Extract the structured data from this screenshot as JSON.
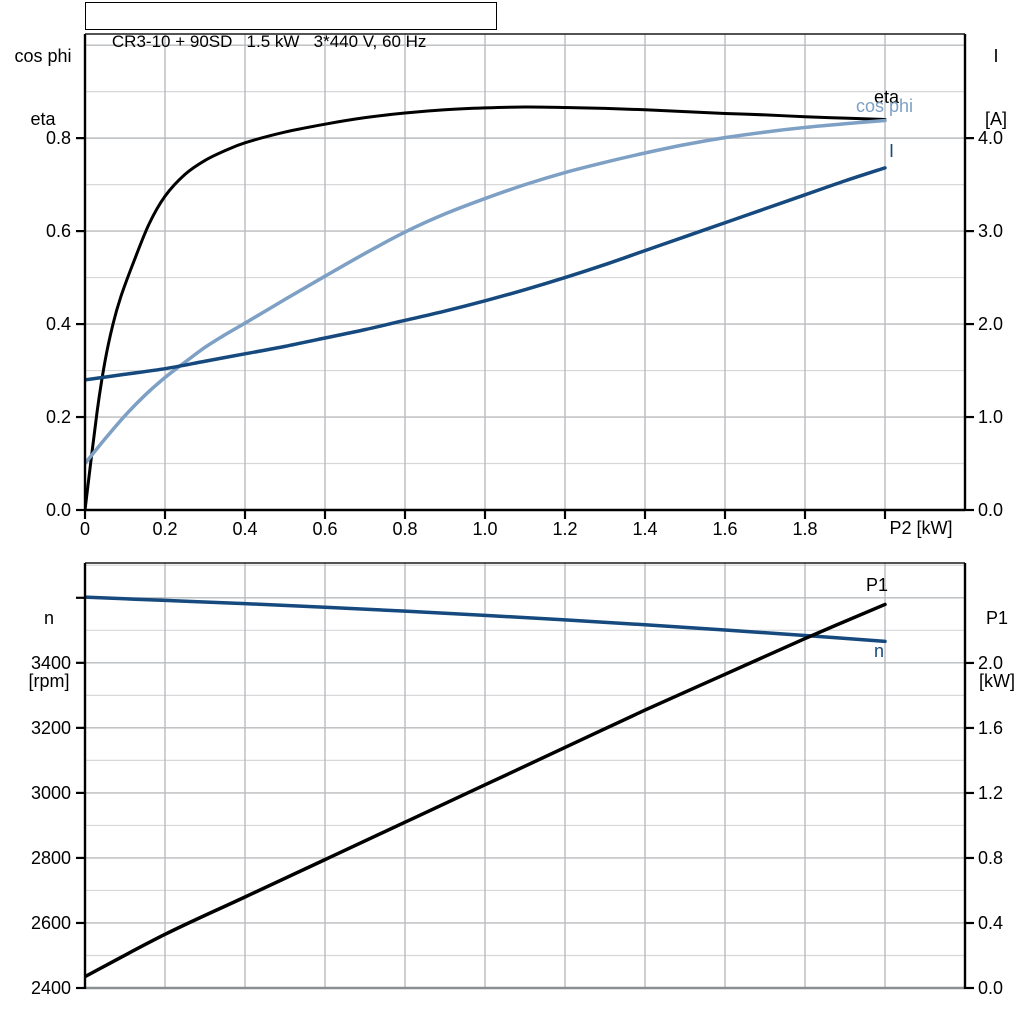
{
  "title": "CR3-10 + 90SD   1.5 kW   3*440 V, 60 Hz",
  "colors": {
    "black": "#000000",
    "light_blue": "#7da0c4",
    "dark_blue": "#16497e",
    "grid_major": "#b8bbbe",
    "grid_minor": "#d6d8da",
    "frame_gray": "#8a8f92",
    "background": "#ffffff"
  },
  "chart_data": [
    {
      "id": "motor-curves",
      "type": "line",
      "title": "CR3-10 + 90SD   1.5 kW   3*440 V, 60 Hz",
      "x_axis": {
        "label": "P2 [kW]",
        "min": 0,
        "max": 2.2,
        "major_step": 0.2,
        "ticks": [
          {
            "v": 0,
            "t": "0"
          },
          {
            "v": 0.2,
            "t": "0.2"
          },
          {
            "v": 0.4,
            "t": "0.4"
          },
          {
            "v": 0.6,
            "t": "0.6"
          },
          {
            "v": 0.8,
            "t": "0.8"
          },
          {
            "v": 1.0,
            "t": "1.0"
          },
          {
            "v": 1.2,
            "t": "1.2"
          },
          {
            "v": 1.4,
            "t": "1.4"
          },
          {
            "v": 1.6,
            "t": "1.6"
          },
          {
            "v": 1.8,
            "t": "1.8"
          },
          {
            "v": 2.0,
            "t": ""
          }
        ]
      },
      "y_left": {
        "label_lines": [
          "cos phi",
          "eta"
        ],
        "min": 0,
        "max": 1.024,
        "major_step": 0.2,
        "minor_step": 0.1,
        "ticks": [
          {
            "v": 0,
            "t": "0.0"
          },
          {
            "v": 0.2,
            "t": "0.2"
          },
          {
            "v": 0.4,
            "t": "0.4"
          },
          {
            "v": 0.6,
            "t": "0.6"
          },
          {
            "v": 0.8,
            "t": "0.8"
          }
        ]
      },
      "y_right": {
        "label_lines": [
          "I",
          "[A]"
        ],
        "min": 0,
        "max": 5.12,
        "major_step": 1,
        "ticks": [
          {
            "v": 0,
            "t": "0.0"
          },
          {
            "v": 1,
            "t": "1.0"
          },
          {
            "v": 2,
            "t": "2.0"
          },
          {
            "v": 3,
            "t": "3.0"
          },
          {
            "v": 4,
            "t": "4.0"
          }
        ]
      },
      "series": [
        {
          "name": "eta",
          "label": "eta",
          "axis": "left",
          "color": "black",
          "points": [
            [
              0,
              0
            ],
            [
              0.03,
              0.21
            ],
            [
              0.05,
              0.32
            ],
            [
              0.07,
              0.4
            ],
            [
              0.09,
              0.46
            ],
            [
              0.12,
              0.53
            ],
            [
              0.16,
              0.615
            ],
            [
              0.2,
              0.675
            ],
            [
              0.25,
              0.722
            ],
            [
              0.3,
              0.752
            ],
            [
              0.35,
              0.773
            ],
            [
              0.4,
              0.79
            ],
            [
              0.5,
              0.813
            ],
            [
              0.6,
              0.83
            ],
            [
              0.7,
              0.844
            ],
            [
              0.8,
              0.854
            ],
            [
              0.9,
              0.861
            ],
            [
              1.0,
              0.865
            ],
            [
              1.1,
              0.867
            ],
            [
              1.2,
              0.866
            ],
            [
              1.3,
              0.864
            ],
            [
              1.4,
              0.861
            ],
            [
              1.5,
              0.857
            ],
            [
              1.6,
              0.853
            ],
            [
              1.7,
              0.85
            ],
            [
              1.8,
              0.846
            ],
            [
              1.9,
              0.843
            ],
            [
              2.0,
              0.84
            ]
          ]
        },
        {
          "name": "cos phi",
          "label": "cos phi",
          "axis": "left",
          "color": "light_blue",
          "points": [
            [
              0,
              0.1
            ],
            [
              0.05,
              0.153
            ],
            [
              0.1,
              0.203
            ],
            [
              0.15,
              0.247
            ],
            [
              0.2,
              0.285
            ],
            [
              0.25,
              0.318
            ],
            [
              0.3,
              0.35
            ],
            [
              0.35,
              0.377
            ],
            [
              0.4,
              0.402
            ],
            [
              0.5,
              0.453
            ],
            [
              0.6,
              0.503
            ],
            [
              0.7,
              0.552
            ],
            [
              0.8,
              0.598
            ],
            [
              0.9,
              0.637
            ],
            [
              1.0,
              0.67
            ],
            [
              1.1,
              0.7
            ],
            [
              1.2,
              0.726
            ],
            [
              1.3,
              0.748
            ],
            [
              1.4,
              0.768
            ],
            [
              1.5,
              0.786
            ],
            [
              1.6,
              0.801
            ],
            [
              1.7,
              0.813
            ],
            [
              1.8,
              0.823
            ],
            [
              1.9,
              0.831
            ],
            [
              2.0,
              0.838
            ]
          ]
        },
        {
          "name": "I",
          "label": "I",
          "axis": "right",
          "color": "dark_blue",
          "points": [
            [
              0,
              1.4
            ],
            [
              0.1,
              1.46
            ],
            [
              0.2,
              1.52
            ],
            [
              0.3,
              1.6
            ],
            [
              0.4,
              1.68
            ],
            [
              0.5,
              1.76
            ],
            [
              0.6,
              1.85
            ],
            [
              0.7,
              1.94
            ],
            [
              0.8,
              2.04
            ],
            [
              0.9,
              2.14
            ],
            [
              1.0,
              2.25
            ],
            [
              1.1,
              2.37
            ],
            [
              1.2,
              2.5
            ],
            [
              1.3,
              2.64
            ],
            [
              1.4,
              2.79
            ],
            [
              1.5,
              2.94
            ],
            [
              1.6,
              3.09
            ],
            [
              1.7,
              3.24
            ],
            [
              1.8,
              3.39
            ],
            [
              1.9,
              3.54
            ],
            [
              2.0,
              3.68
            ]
          ]
        }
      ]
    },
    {
      "id": "speed-power-curves",
      "type": "line",
      "x_axis": {
        "label": "",
        "min": 0,
        "max": 2.2,
        "major_step": 0.2,
        "ticks": []
      },
      "y_left": {
        "label_lines": [
          "n",
          "[rpm]"
        ],
        "min": 2400,
        "max": 3707,
        "major_step": 200,
        "minor_step": 100,
        "ticks": [
          {
            "v": 2400,
            "t": "2400"
          },
          {
            "v": 2600,
            "t": "2600"
          },
          {
            "v": 2800,
            "t": "2800"
          },
          {
            "v": 3000,
            "t": "3000"
          },
          {
            "v": 3200,
            "t": "3200"
          },
          {
            "v": 3400,
            "t": "3400"
          },
          {
            "v": 3600,
            "t": ""
          }
        ]
      },
      "y_right": {
        "label_lines": [
          "P1",
          "[kW]"
        ],
        "min": 0,
        "max": 2.615,
        "major_step": 0.4,
        "minor_step": 0.2,
        "ticks": [
          {
            "v": 0,
            "t": "0.0"
          },
          {
            "v": 0.4,
            "t": "0.4"
          },
          {
            "v": 0.8,
            "t": "0.8"
          },
          {
            "v": 1.2,
            "t": "1.2"
          },
          {
            "v": 1.6,
            "t": "1.6"
          },
          {
            "v": 2.0,
            "t": "2.0"
          }
        ]
      },
      "series": [
        {
          "name": "n",
          "label": "n",
          "axis": "left",
          "color": "dark_blue",
          "points": [
            [
              0,
              3602
            ],
            [
              0.2,
              3592
            ],
            [
              0.4,
              3582
            ],
            [
              0.6,
              3571
            ],
            [
              0.8,
              3559
            ],
            [
              1.0,
              3546
            ],
            [
              1.2,
              3532
            ],
            [
              1.4,
              3517
            ],
            [
              1.6,
              3501
            ],
            [
              1.8,
              3484
            ],
            [
              2.0,
              3466
            ]
          ]
        },
        {
          "name": "P1",
          "label": "P1",
          "axis": "right",
          "color": "black",
          "points": [
            [
              0,
              0.07
            ],
            [
              0.2,
              0.33
            ],
            [
              0.4,
              0.56
            ],
            [
              0.6,
              0.79
            ],
            [
              0.8,
              1.02
            ],
            [
              1.0,
              1.25
            ],
            [
              1.2,
              1.48
            ],
            [
              1.4,
              1.71
            ],
            [
              1.6,
              1.93
            ],
            [
              1.8,
              2.15
            ],
            [
              2.0,
              2.36
            ]
          ]
        }
      ]
    }
  ]
}
